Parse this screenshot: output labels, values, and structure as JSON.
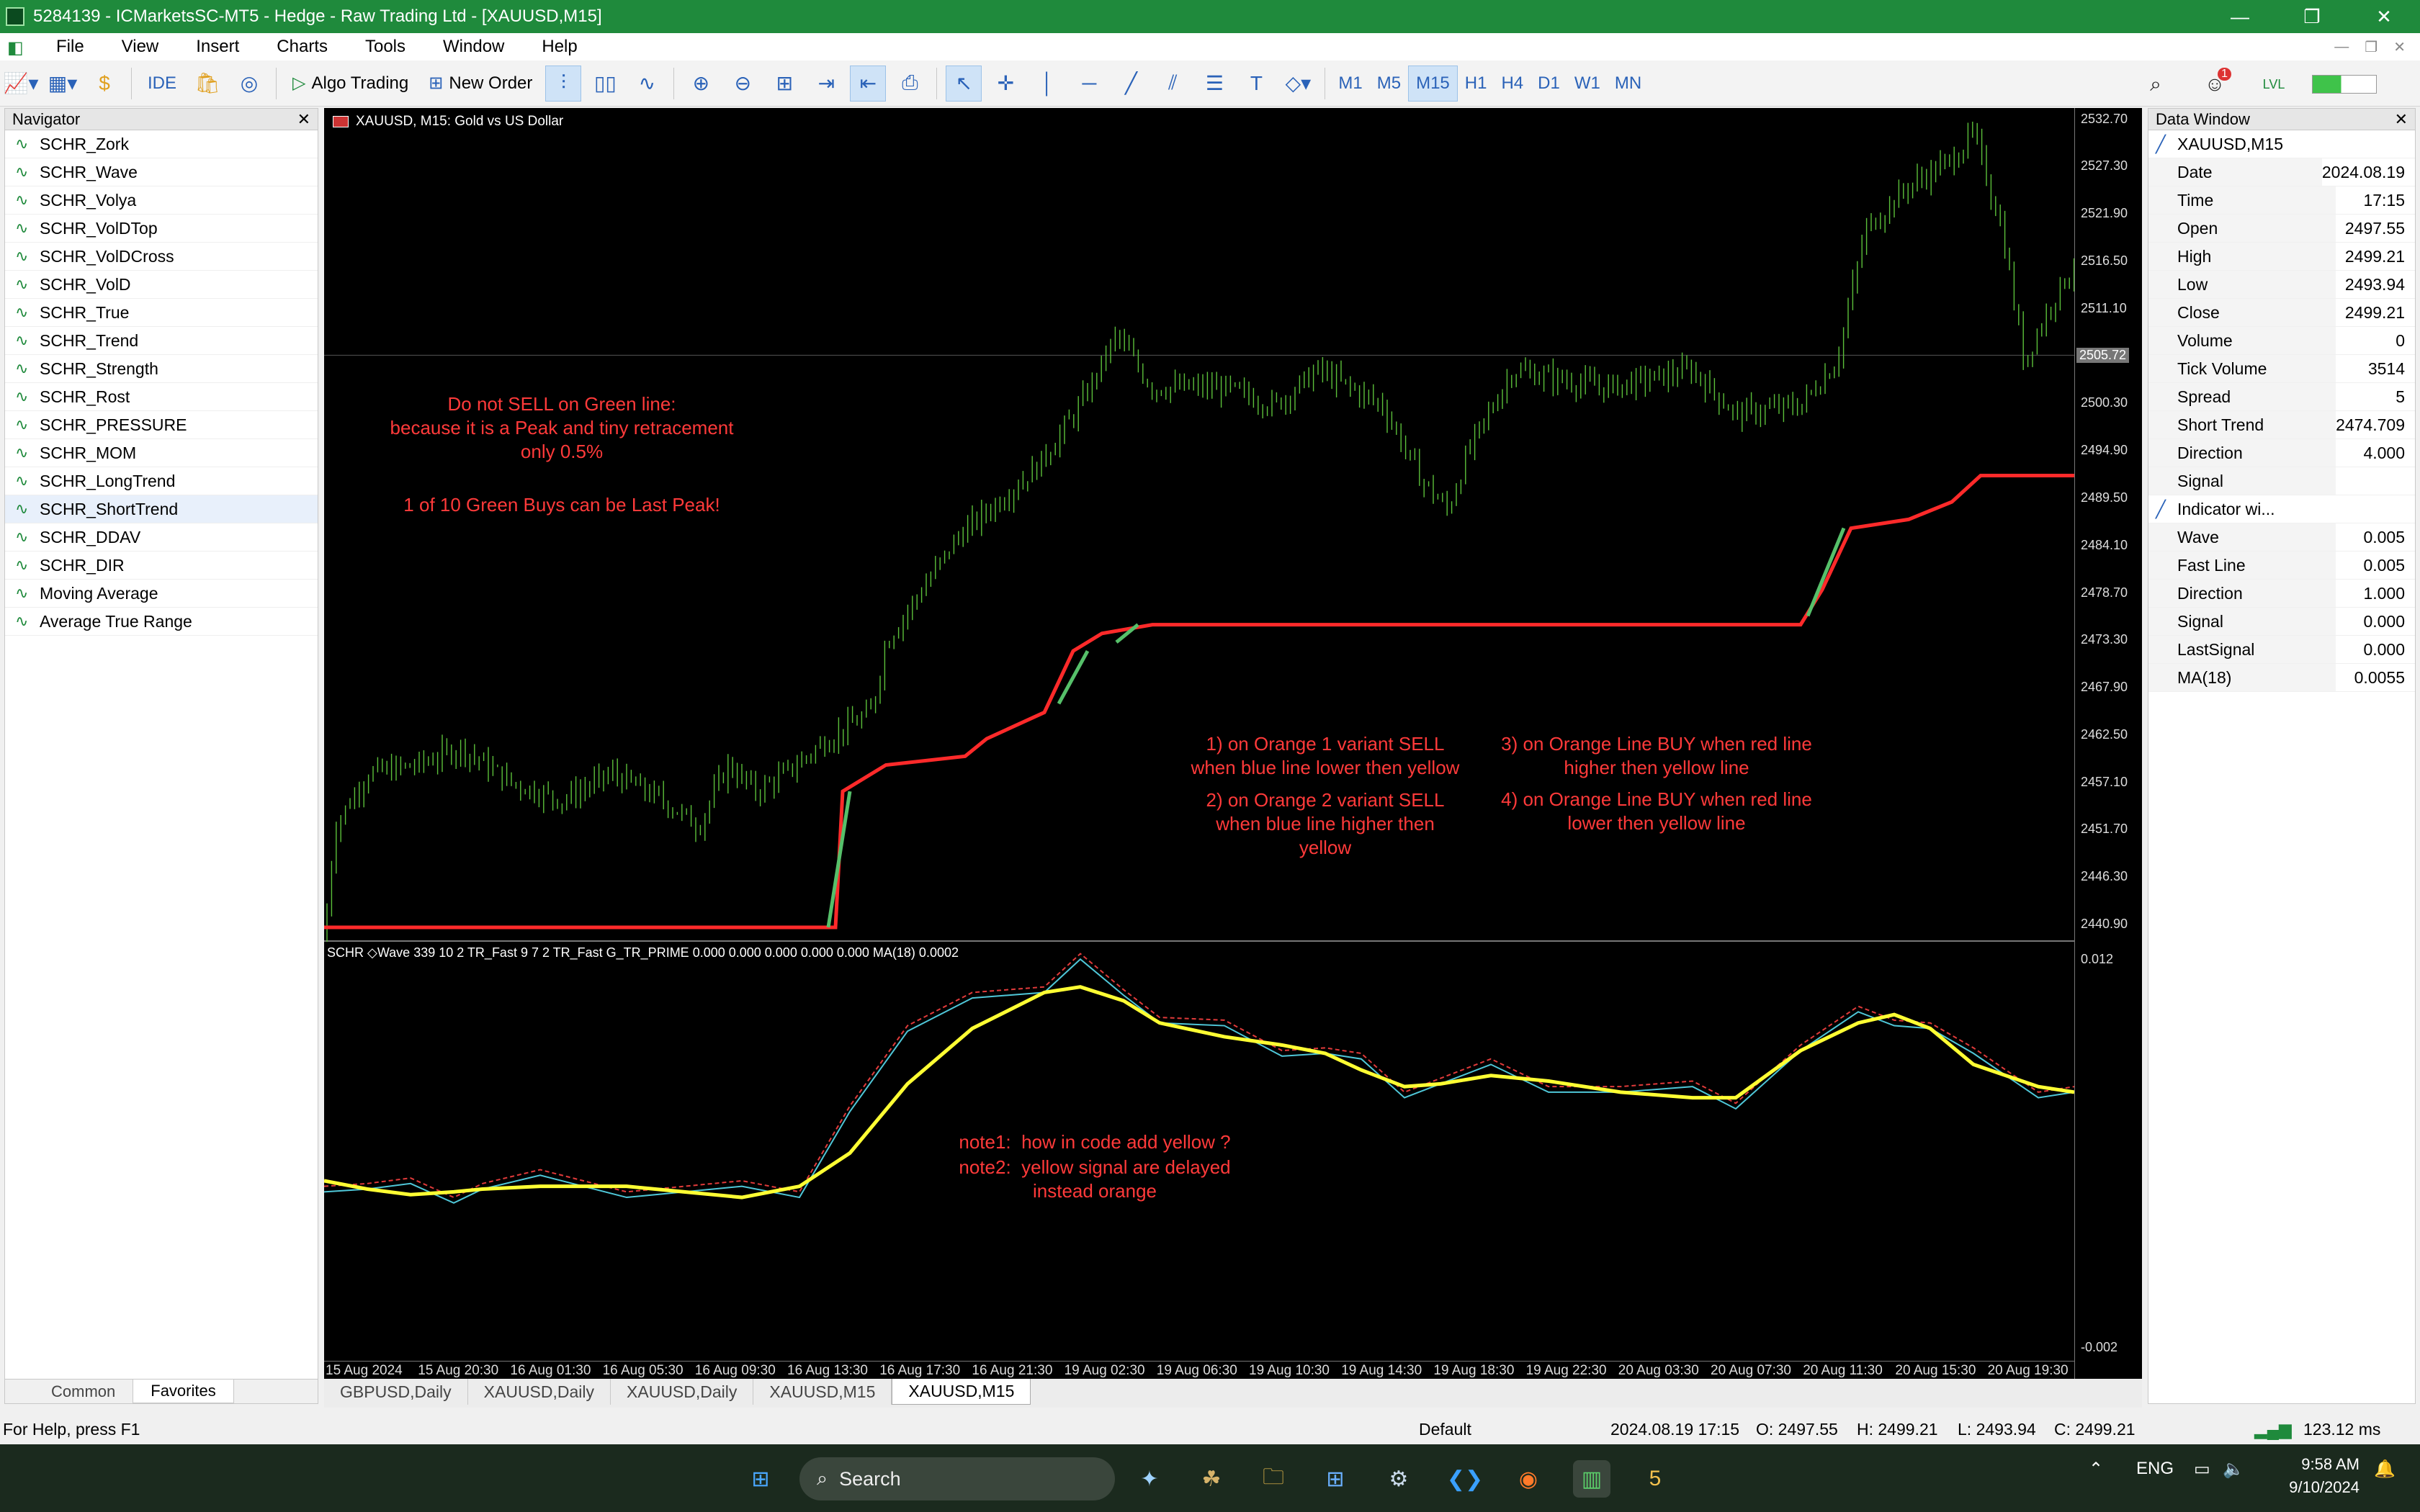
{
  "window": {
    "title": "5284139 - ICMarketsSC-MT5 - Hedge - Raw Trading Ltd - [XAUUSD,M15]"
  },
  "menu": [
    "File",
    "View",
    "Insert",
    "Charts",
    "Tools",
    "Window",
    "Help"
  ],
  "toolbar": {
    "ide": "IDE",
    "algo": "Algo Trading",
    "order": "New Order",
    "timeframes": [
      "M1",
      "M5",
      "M15",
      "H1",
      "H4",
      "D1",
      "W1",
      "MN"
    ],
    "active_tf": "M15",
    "notif": "1"
  },
  "navigator": {
    "title": "Navigator",
    "items": [
      "SCHR_Zork",
      "SCHR_Wave",
      "SCHR_Volya",
      "SCHR_VolDTop",
      "SCHR_VolDCross",
      "SCHR_VolD",
      "SCHR_True",
      "SCHR_Trend",
      "SCHR_Strength",
      "SCHR_Rost",
      "SCHR_PRESSURE",
      "SCHR_MOM",
      "SCHR_LongTrend",
      "SCHR_ShortTrend",
      "SCHR_DDAV",
      "SCHR_DIR",
      "Moving Average",
      "Average True Range"
    ],
    "tabs": [
      "Common",
      "Favorites"
    ]
  },
  "data_window": {
    "title": "Data Window",
    "symbol": "XAUUSD,M15",
    "rows": [
      [
        "Date",
        "2024.08.19"
      ],
      [
        "Time",
        "17:15"
      ],
      [
        "Open",
        "2497.55"
      ],
      [
        "High",
        "2499.21"
      ],
      [
        "Low",
        "2493.94"
      ],
      [
        "Close",
        "2499.21"
      ],
      [
        "Volume",
        "0"
      ],
      [
        "Tick Volume",
        "3514"
      ],
      [
        "Spread",
        "5"
      ],
      [
        "Short Trend",
        "2474.709"
      ],
      [
        "Direction",
        "4.000"
      ],
      [
        "Signal",
        ""
      ]
    ],
    "indicator_section": "Indicator wi...",
    "rows2": [
      [
        "Wave",
        "0.005"
      ],
      [
        "Fast Line",
        "0.005"
      ],
      [
        "Direction",
        "1.000"
      ],
      [
        "Signal",
        "0.000"
      ],
      [
        "LastSignal",
        "0.000"
      ],
      [
        "MA(18)",
        "0.0055"
      ]
    ]
  },
  "chart": {
    "title": "XAUUSD, M15:  Gold vs US Dollar",
    "current_price": "2505.72",
    "price_labels": [
      "2532.70",
      "2527.30",
      "2521.90",
      "2516.50",
      "2511.10",
      "2505.72",
      "2500.30",
      "2494.90",
      "2489.50",
      "2484.10",
      "2478.70",
      "2473.30",
      "2467.90",
      "2462.50",
      "2457.10",
      "2451.70",
      "2446.30",
      "2440.90"
    ],
    "sub_labels": [
      "0.012",
      "-0.002"
    ],
    "sub_title": "SCHR ◇Wave 339 10 2 TR_Fast 9 7 2 TR_Fast G_TR_PRIME 0.000 0.000 0.000 0.000 0.000 MA(18) 0.0002",
    "x_labels": [
      "15 Aug 2024",
      "15 Aug 20:30",
      "16 Aug 01:30",
      "16 Aug 05:30",
      "16 Aug 09:30",
      "16 Aug 13:30",
      "16 Aug 17:30",
      "16 Aug 21:30",
      "19 Aug 02:30",
      "19 Aug 06:30",
      "19 Aug 10:30",
      "19 Aug 14:30",
      "19 Aug 18:30",
      "19 Aug 22:30",
      "20 Aug 03:30",
      "20 Aug 07:30",
      "20 Aug 11:30",
      "20 Aug 15:30",
      "20 Aug 19:30"
    ],
    "notes": {
      "n1": "Do not SELL on Green line:\nbecause it is a Peak and tiny retracement\nonly 0.5%",
      "n2": "1 of 10 Green Buys can be Last Peak!",
      "n3": "1) on Orange 1 variant SELL\nwhen blue line lower then yellow",
      "n4": "2) on Orange 2 variant SELL\nwhen blue line higher then\nyellow",
      "n5": "3) on Orange Line BUY when red line\nhigher then yellow line",
      "n6": "4) on Orange Line BUY when red line\nlower then yellow line",
      "n7": "note1:  how in code add yellow ?",
      "n8": "note2:  yellow signal are delayed\ninstead orange"
    },
    "colors": {
      "candle": "#5bbf3a",
      "trend_red": "#ff2a2a",
      "trend_green": "#56c06a",
      "ma": "#ffff33",
      "fast": "#e03a3a",
      "wave": "#4fc7d8"
    }
  },
  "chart_tabs": [
    "GBPUSD,Daily",
    "XAUUSD,Daily",
    "XAUUSD,Daily",
    "XAUUSD,M15",
    "XAUUSD,M15"
  ],
  "status": {
    "help": "For Help, press F1",
    "profile": "Default",
    "datetime": "2024.08.19 17:15",
    "o": "O: 2497.55",
    "h": "H: 2499.21",
    "l": "L: 2493.94",
    "c": "C: 2499.21",
    "ping": "123.12 ms"
  },
  "taskbar": {
    "search": "Search",
    "lang": "ENG",
    "time": "9:58 AM",
    "date": "9/10/2024"
  }
}
